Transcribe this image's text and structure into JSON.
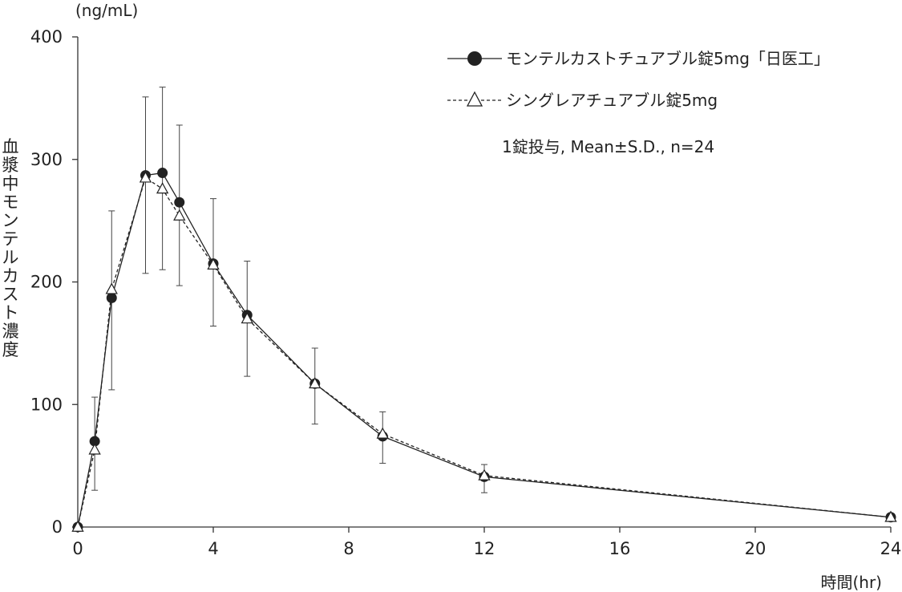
{
  "chart_data": {
    "type": "line",
    "y_unit": "(ng/mL)",
    "ylabel": "血漿中モンテルカスト濃度",
    "xlabel": "時間(hr)",
    "xlim": [
      0,
      24
    ],
    "ylim": [
      0,
      400
    ],
    "x_ticks": [
      0,
      4,
      8,
      12,
      16,
      20,
      24
    ],
    "y_ticks": [
      0,
      100,
      200,
      300,
      400
    ],
    "grid": false,
    "legend_position": "top-right",
    "annotation": "1錠投与, Mean±S.D., n=24",
    "series": [
      {
        "name": "モンテルカストチュアブル錠5mg「日医工」",
        "marker": "filled-circle",
        "line": "solid",
        "color": "#222222",
        "x": [
          0,
          0.5,
          1,
          2,
          2.5,
          3,
          4,
          5,
          7,
          9,
          12,
          24
        ],
        "y": [
          0,
          70,
          187,
          287,
          289,
          265,
          215,
          173,
          117,
          74,
          41,
          8
        ]
      },
      {
        "name": "シングレアチュアブル錠5mg",
        "marker": "open-triangle",
        "line": "dashed",
        "color": "#222222",
        "x": [
          0,
          0.5,
          1,
          2,
          2.5,
          3,
          4,
          5,
          7,
          9,
          12,
          24
        ],
        "y": [
          0,
          63,
          194,
          285,
          276,
          254,
          214,
          170,
          117,
          76,
          42,
          8
        ]
      }
    ],
    "error_bars": {
      "x": [
        0.5,
        1,
        2,
        2.5,
        3,
        4,
        5,
        7,
        9,
        12
      ],
      "upper": [
        106,
        258,
        351,
        359,
        328,
        268,
        217,
        146,
        94,
        51
      ],
      "lower": [
        30,
        112,
        207,
        210,
        197,
        164,
        123,
        84,
        52,
        28
      ]
    }
  }
}
